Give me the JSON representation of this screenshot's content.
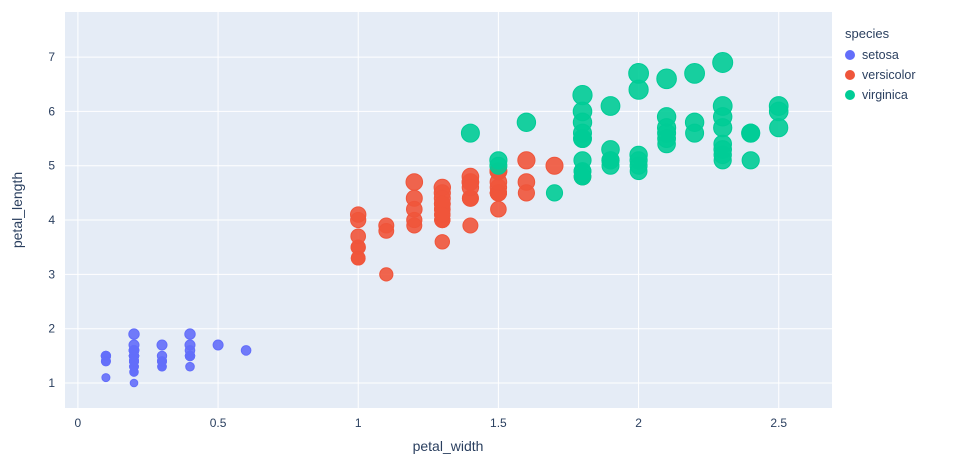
{
  "chart_data": {
    "type": "scatter",
    "title": "",
    "xlabel": "petal_width",
    "ylabel": "petal_length",
    "legend_title": "species",
    "legend_position": "right-top",
    "grid": true,
    "xlim": [
      -0.046,
      2.69
    ],
    "ylim": [
      0.54,
      7.83
    ],
    "x_ticks": [
      0,
      0.5,
      1,
      1.5,
      2,
      2.5
    ],
    "y_ticks": [
      1,
      2,
      3,
      4,
      5,
      6,
      7
    ],
    "sized_by": "petal_length",
    "size_max": 20,
    "size_ref": 6.9,
    "colors": {
      "plot_bg": "#E5ECF6",
      "grid": "#FFFFFF",
      "font": "#2a3f5f"
    },
    "series": [
      {
        "name": "setosa",
        "color": "#636EFA",
        "points": [
          [
            0.2,
            1.4
          ],
          [
            0.2,
            1.4
          ],
          [
            0.2,
            1.3
          ],
          [
            0.2,
            1.5
          ],
          [
            0.2,
            1.4
          ],
          [
            0.4,
            1.7
          ],
          [
            0.3,
            1.4
          ],
          [
            0.2,
            1.5
          ],
          [
            0.2,
            1.4
          ],
          [
            0.1,
            1.5
          ],
          [
            0.2,
            1.5
          ],
          [
            0.2,
            1.6
          ],
          [
            0.1,
            1.4
          ],
          [
            0.1,
            1.1
          ],
          [
            0.2,
            1.2
          ],
          [
            0.4,
            1.5
          ],
          [
            0.4,
            1.3
          ],
          [
            0.3,
            1.4
          ],
          [
            0.3,
            1.7
          ],
          [
            0.3,
            1.5
          ],
          [
            0.2,
            1.7
          ],
          [
            0.4,
            1.5
          ],
          [
            0.2,
            1.0
          ],
          [
            0.5,
            1.7
          ],
          [
            0.2,
            1.9
          ],
          [
            0.2,
            1.6
          ],
          [
            0.4,
            1.6
          ],
          [
            0.2,
            1.5
          ],
          [
            0.2,
            1.4
          ],
          [
            0.2,
            1.6
          ],
          [
            0.2,
            1.6
          ],
          [
            0.4,
            1.5
          ],
          [
            0.1,
            1.5
          ],
          [
            0.2,
            1.4
          ],
          [
            0.2,
            1.5
          ],
          [
            0.2,
            1.2
          ],
          [
            0.2,
            1.3
          ],
          [
            0.1,
            1.4
          ],
          [
            0.2,
            1.3
          ],
          [
            0.2,
            1.5
          ],
          [
            0.3,
            1.3
          ],
          [
            0.3,
            1.3
          ],
          [
            0.2,
            1.3
          ],
          [
            0.6,
            1.6
          ],
          [
            0.4,
            1.9
          ],
          [
            0.3,
            1.4
          ],
          [
            0.2,
            1.6
          ],
          [
            0.2,
            1.4
          ],
          [
            0.2,
            1.5
          ],
          [
            0.2,
            1.4
          ]
        ]
      },
      {
        "name": "versicolor",
        "color": "#EF553B",
        "points": [
          [
            1.4,
            4.7
          ],
          [
            1.5,
            4.5
          ],
          [
            1.5,
            4.9
          ],
          [
            1.3,
            4.0
          ],
          [
            1.5,
            4.6
          ],
          [
            1.3,
            4.5
          ],
          [
            1.6,
            4.7
          ],
          [
            1.0,
            3.3
          ],
          [
            1.3,
            4.6
          ],
          [
            1.4,
            3.9
          ],
          [
            1.0,
            3.5
          ],
          [
            1.5,
            4.2
          ],
          [
            1.0,
            4.0
          ],
          [
            1.4,
            4.7
          ],
          [
            1.3,
            3.6
          ],
          [
            1.4,
            4.4
          ],
          [
            1.5,
            4.5
          ],
          [
            1.0,
            4.1
          ],
          [
            1.5,
            4.5
          ],
          [
            1.1,
            3.9
          ],
          [
            1.8,
            4.8
          ],
          [
            1.3,
            4.0
          ],
          [
            1.5,
            4.9
          ],
          [
            1.2,
            4.7
          ],
          [
            1.3,
            4.3
          ],
          [
            1.4,
            4.4
          ],
          [
            1.4,
            4.8
          ],
          [
            1.7,
            5.0
          ],
          [
            1.5,
            4.5
          ],
          [
            1.0,
            3.5
          ],
          [
            1.1,
            3.8
          ],
          [
            1.0,
            3.7
          ],
          [
            1.2,
            3.9
          ],
          [
            1.6,
            5.1
          ],
          [
            1.5,
            4.5
          ],
          [
            1.6,
            4.5
          ],
          [
            1.5,
            4.7
          ],
          [
            1.3,
            4.4
          ],
          [
            1.3,
            4.1
          ],
          [
            1.3,
            4.0
          ],
          [
            1.2,
            4.4
          ],
          [
            1.4,
            4.6
          ],
          [
            1.2,
            4.0
          ],
          [
            1.0,
            3.3
          ],
          [
            1.3,
            4.2
          ],
          [
            1.2,
            4.2
          ],
          [
            1.3,
            4.2
          ],
          [
            1.3,
            4.3
          ],
          [
            1.1,
            3.0
          ],
          [
            1.3,
            4.1
          ]
        ]
      },
      {
        "name": "virginica",
        "color": "#00CC96",
        "points": [
          [
            2.5,
            6.0
          ],
          [
            1.9,
            5.1
          ],
          [
            2.1,
            5.9
          ],
          [
            1.8,
            5.6
          ],
          [
            2.2,
            5.8
          ],
          [
            2.1,
            6.6
          ],
          [
            1.7,
            4.5
          ],
          [
            1.8,
            6.3
          ],
          [
            1.8,
            5.8
          ],
          [
            2.5,
            6.1
          ],
          [
            2.0,
            5.1
          ],
          [
            1.9,
            5.3
          ],
          [
            2.1,
            5.5
          ],
          [
            2.0,
            5.0
          ],
          [
            2.4,
            5.1
          ],
          [
            2.3,
            5.3
          ],
          [
            1.8,
            5.5
          ],
          [
            2.2,
            6.7
          ],
          [
            2.3,
            6.9
          ],
          [
            1.5,
            5.0
          ],
          [
            2.3,
            5.7
          ],
          [
            2.0,
            4.9
          ],
          [
            2.0,
            6.7
          ],
          [
            1.8,
            4.9
          ],
          [
            2.1,
            5.7
          ],
          [
            1.8,
            6.0
          ],
          [
            1.8,
            4.8
          ],
          [
            1.8,
            4.9
          ],
          [
            2.1,
            5.6
          ],
          [
            1.6,
            5.8
          ],
          [
            1.9,
            6.1
          ],
          [
            2.0,
            6.4
          ],
          [
            2.2,
            5.6
          ],
          [
            1.5,
            5.1
          ],
          [
            1.4,
            5.6
          ],
          [
            2.3,
            6.1
          ],
          [
            2.4,
            5.6
          ],
          [
            1.8,
            5.5
          ],
          [
            1.8,
            4.8
          ],
          [
            2.1,
            5.4
          ],
          [
            2.4,
            5.6
          ],
          [
            2.3,
            5.1
          ],
          [
            1.9,
            5.1
          ],
          [
            2.3,
            5.9
          ],
          [
            2.5,
            5.7
          ],
          [
            2.3,
            5.2
          ],
          [
            1.9,
            5.0
          ],
          [
            2.0,
            5.2
          ],
          [
            2.3,
            5.4
          ],
          [
            1.8,
            5.1
          ]
        ]
      }
    ]
  }
}
